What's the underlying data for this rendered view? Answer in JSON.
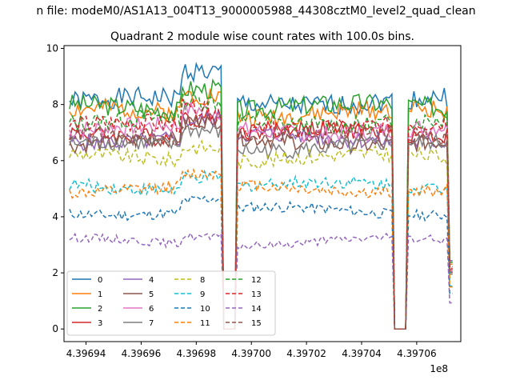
{
  "suptitle": "n file: modeM0/AS1A13_004T13_9000005988_44308cztM0_level2_quad_clean",
  "chart_data": {
    "type": "line",
    "title": "Quadrant 2 module wise count rates with 100.0s bins.",
    "xlabel": "",
    "ylabel": "",
    "offset_text": "1e8",
    "xlim": [
      439693200,
      439707600
    ],
    "ylim": [
      -0.45,
      10.1
    ],
    "x_ticks": [
      439694000,
      439696000,
      439698000,
      439700000,
      439702000,
      439704000,
      439706000
    ],
    "x_tick_labels": [
      "4.39694",
      "4.39696",
      "4.39698",
      "4.39700",
      "4.39702",
      "4.39704",
      "4.39706"
    ],
    "y_ticks": [
      0,
      2,
      4,
      6,
      8,
      10
    ],
    "y_tick_labels": [
      "0",
      "2",
      "4",
      "6",
      "8",
      "10"
    ],
    "grid": false,
    "legend_position": "lower-left",
    "legend_columns": 4,
    "time_range": [
      439693400,
      439707300
    ],
    "bin_seconds": 100,
    "gaps": [
      {
        "start": 439699000,
        "end": 439699400
      },
      {
        "start": 439705200,
        "end": 439705600
      }
    ],
    "series": [
      {
        "name": "0",
        "color": "#1f77b4",
        "dash": "solid",
        "level": 8.1,
        "rise": 1.0
      },
      {
        "name": "1",
        "color": "#ff7f0e",
        "dash": "solid",
        "level": 7.7,
        "rise": 0.7
      },
      {
        "name": "2",
        "color": "#2ca02c",
        "dash": "solid",
        "level": 7.9,
        "rise": 0.8
      },
      {
        "name": "3",
        "color": "#d62728",
        "dash": "solid",
        "level": 7.0,
        "rise": 0.6
      },
      {
        "name": "4",
        "color": "#9467bd",
        "dash": "solid",
        "level": 6.8,
        "rise": 0.6
      },
      {
        "name": "5",
        "color": "#8c564b",
        "dash": "solid",
        "level": 6.7,
        "rise": 0.6
      },
      {
        "name": "6",
        "color": "#e377c2",
        "dash": "solid",
        "level": 7.1,
        "rise": 0.6
      },
      {
        "name": "7",
        "color": "#7f7f7f",
        "dash": "solid",
        "level": 6.5,
        "rise": 0.6
      },
      {
        "name": "8",
        "color": "#bcbd22",
        "dash": "dashed",
        "level": 6.1,
        "rise": 0.5
      },
      {
        "name": "9",
        "color": "#17becf",
        "dash": "dashed",
        "level": 5.1,
        "rise": 0.4
      },
      {
        "name": "10",
        "color": "#1f77b4",
        "dash": "dashed",
        "level": 4.2,
        "rise": 0.4
      },
      {
        "name": "11",
        "color": "#ff7f0e",
        "dash": "dashed",
        "level": 5.0,
        "rise": 0.4
      },
      {
        "name": "12",
        "color": "#2ca02c",
        "dash": "dashed",
        "level": 7.4,
        "rise": 0.6
      },
      {
        "name": "13",
        "color": "#d62728",
        "dash": "dashed",
        "level": 7.2,
        "rise": 0.6
      },
      {
        "name": "14",
        "color": "#9467bd",
        "dash": "dashed",
        "level": 3.1,
        "rise": 0.3
      },
      {
        "name": "15",
        "color": "#8c564b",
        "dash": "dashed",
        "level": 6.9,
        "rise": 0.6
      }
    ]
  }
}
